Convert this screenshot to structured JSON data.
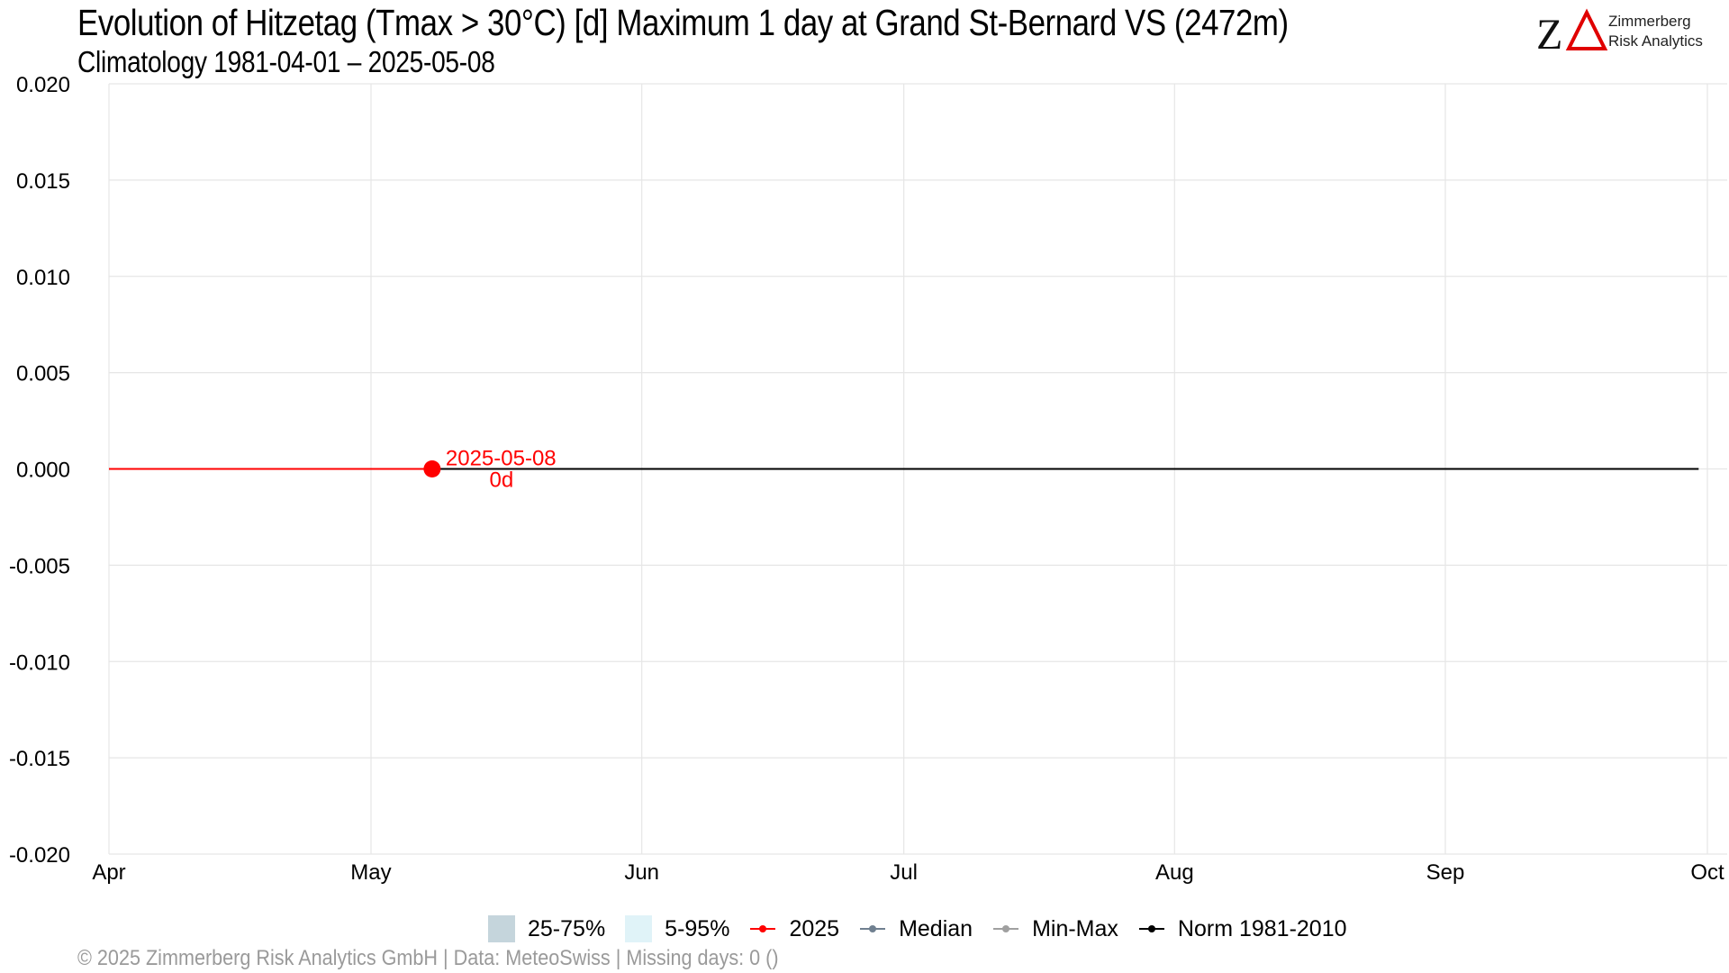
{
  "header": {
    "title": "Evolution of Hitzetag (Tmax > 30°C) [d] Maximum 1 day at Grand St-Bernard  VS (2472m)",
    "subtitle": "Climatology 1981-04-01 – 2025-05-08"
  },
  "logo": {
    "mark": "ZΔ",
    "line1": "Zimmerberg",
    "line2": "Risk Analytics"
  },
  "footer": {
    "text": "©  2025 Zimmerberg Risk Analytics GmbH | Data: MeteoSwiss | Missing days: 0 ()"
  },
  "colors": {
    "current_year": "#ff0000",
    "norm": "#000000",
    "median": "#708090",
    "minmax": "#a0a0a0",
    "band_25_75": "#c5d5dc",
    "band_5_95": "#e0f3f8",
    "grid": "#e6e6e6"
  },
  "legend": [
    {
      "label": "25-75%",
      "kind": "swatch",
      "color": "#c5d5dc"
    },
    {
      "label": "5-95%",
      "kind": "swatch",
      "color": "#e0f3f8"
    },
    {
      "label": "2025",
      "kind": "line",
      "color": "#ff0000"
    },
    {
      "label": "Median",
      "kind": "line",
      "color": "#708090"
    },
    {
      "label": "Min-Max",
      "kind": "line",
      "color": "#a0a0a0"
    },
    {
      "label": "Norm 1981-2010",
      "kind": "line",
      "color": "#000000"
    }
  ],
  "chart_data": {
    "type": "line",
    "title": "Evolution of Hitzetag (Tmax > 30°C) [d] Maximum 1 day at Grand St-Bernard  VS (2472m)",
    "subtitle": "Climatology 1981-04-01 – 2025-05-08",
    "xlabel": "",
    "ylabel": "",
    "xlim": [
      "2025-04-01",
      "2025-10-01"
    ],
    "ylim": [
      -0.02,
      0.02
    ],
    "x_ticks": [
      {
        "date": "2025-04-01",
        "label": "Apr"
      },
      {
        "date": "2025-05-01",
        "label": "May"
      },
      {
        "date": "2025-06-01",
        "label": "Jun"
      },
      {
        "date": "2025-07-01",
        "label": "Jul"
      },
      {
        "date": "2025-08-01",
        "label": "Aug"
      },
      {
        "date": "2025-09-01",
        "label": "Sep"
      },
      {
        "date": "2025-10-01",
        "label": "Oct"
      }
    ],
    "y_ticks": [
      0.02,
      0.015,
      0.01,
      0.005,
      0.0,
      -0.005,
      -0.01,
      -0.015,
      -0.02
    ],
    "y_tick_labels": [
      "0.020",
      "0.015",
      "0.010",
      "0.005",
      "0.000",
      "-0.005",
      "-0.010",
      "-0.015",
      "-0.020"
    ],
    "grid": true,
    "legend_position": "bottom",
    "series": [
      {
        "name": "Norm 1981-2010",
        "color": "#000000",
        "x": [
          "2025-04-01",
          "2025-09-30"
        ],
        "y": [
          0,
          0
        ]
      },
      {
        "name": "2025",
        "color": "#ff0000",
        "x": [
          "2025-04-01",
          "2025-05-08"
        ],
        "y": [
          0,
          0
        ]
      }
    ],
    "annotations": [
      {
        "x": "2025-05-08",
        "y": 0,
        "date_label": "2025-05-08",
        "value_label": "0d"
      }
    ]
  }
}
